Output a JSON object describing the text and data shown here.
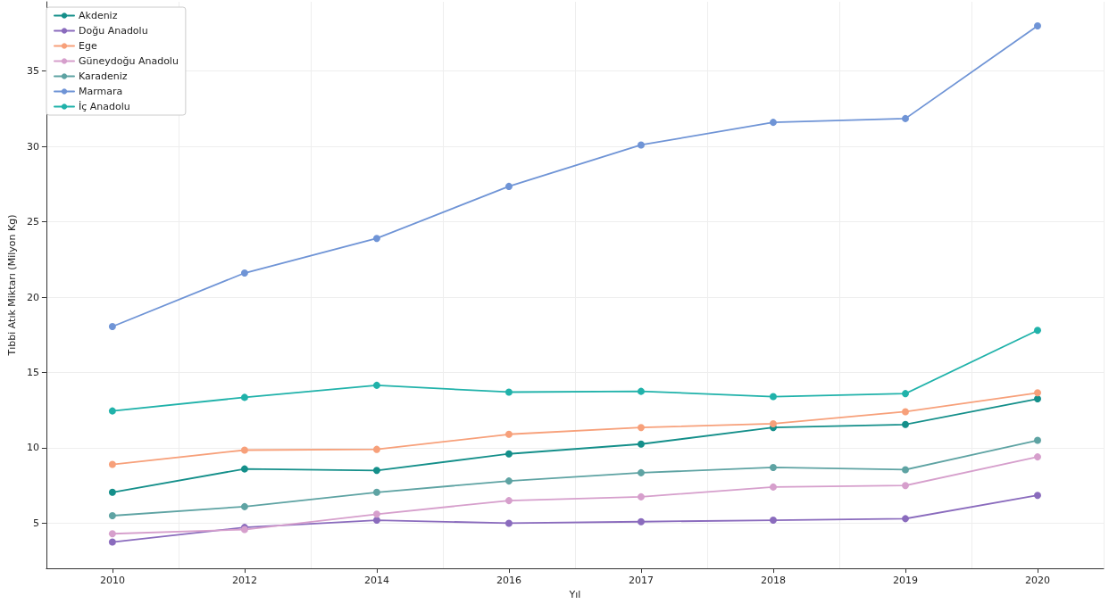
{
  "chart_data": {
    "type": "line",
    "xlabel": "Yıl",
    "ylabel": "Tıbbi Atık Miktarı (Milyon Kg)",
    "categories": [
      "2010",
      "2012",
      "2014",
      "2016",
      "2017",
      "2018",
      "2019",
      "2020"
    ],
    "series": [
      {
        "name": "Akdeniz",
        "color": "#148f8a",
        "values": [
          7.05,
          8.6,
          8.5,
          9.6,
          10.25,
          11.35,
          11.55,
          13.25
        ]
      },
      {
        "name": "Doğu Anadolu",
        "color": "#8a6bbd",
        "values": [
          3.75,
          4.72,
          5.2,
          5.0,
          5.1,
          5.2,
          5.3,
          6.85
        ]
      },
      {
        "name": "Ege",
        "color": "#f7a07a",
        "values": [
          8.9,
          9.85,
          9.9,
          10.9,
          11.35,
          11.6,
          12.4,
          13.65
        ]
      },
      {
        "name": "Güneydoğu Anadolu",
        "color": "#d69fcc",
        "values": [
          4.3,
          4.58,
          5.6,
          6.5,
          6.75,
          7.4,
          7.5,
          9.4
        ]
      },
      {
        "name": "Karadeniz",
        "color": "#5ea3a3",
        "values": [
          5.5,
          6.1,
          7.05,
          7.8,
          8.35,
          8.7,
          8.55,
          10.5
        ]
      },
      {
        "name": "Marmara",
        "color": "#6f94d6",
        "values": [
          18.05,
          21.6,
          23.9,
          27.35,
          30.1,
          31.6,
          31.85,
          38.0
        ]
      },
      {
        "name": "İç Anadolu",
        "color": "#20b2aa",
        "values": [
          12.45,
          13.35,
          14.15,
          13.7,
          13.75,
          13.4,
          13.6,
          17.8
        ]
      }
    ],
    "ylim": [
      2.0,
      39.6
    ],
    "yticks": [
      5,
      10,
      15,
      20,
      25,
      30,
      35
    ],
    "grid": true,
    "legend": "top left",
    "marker": "circle",
    "line_style": "solid"
  }
}
